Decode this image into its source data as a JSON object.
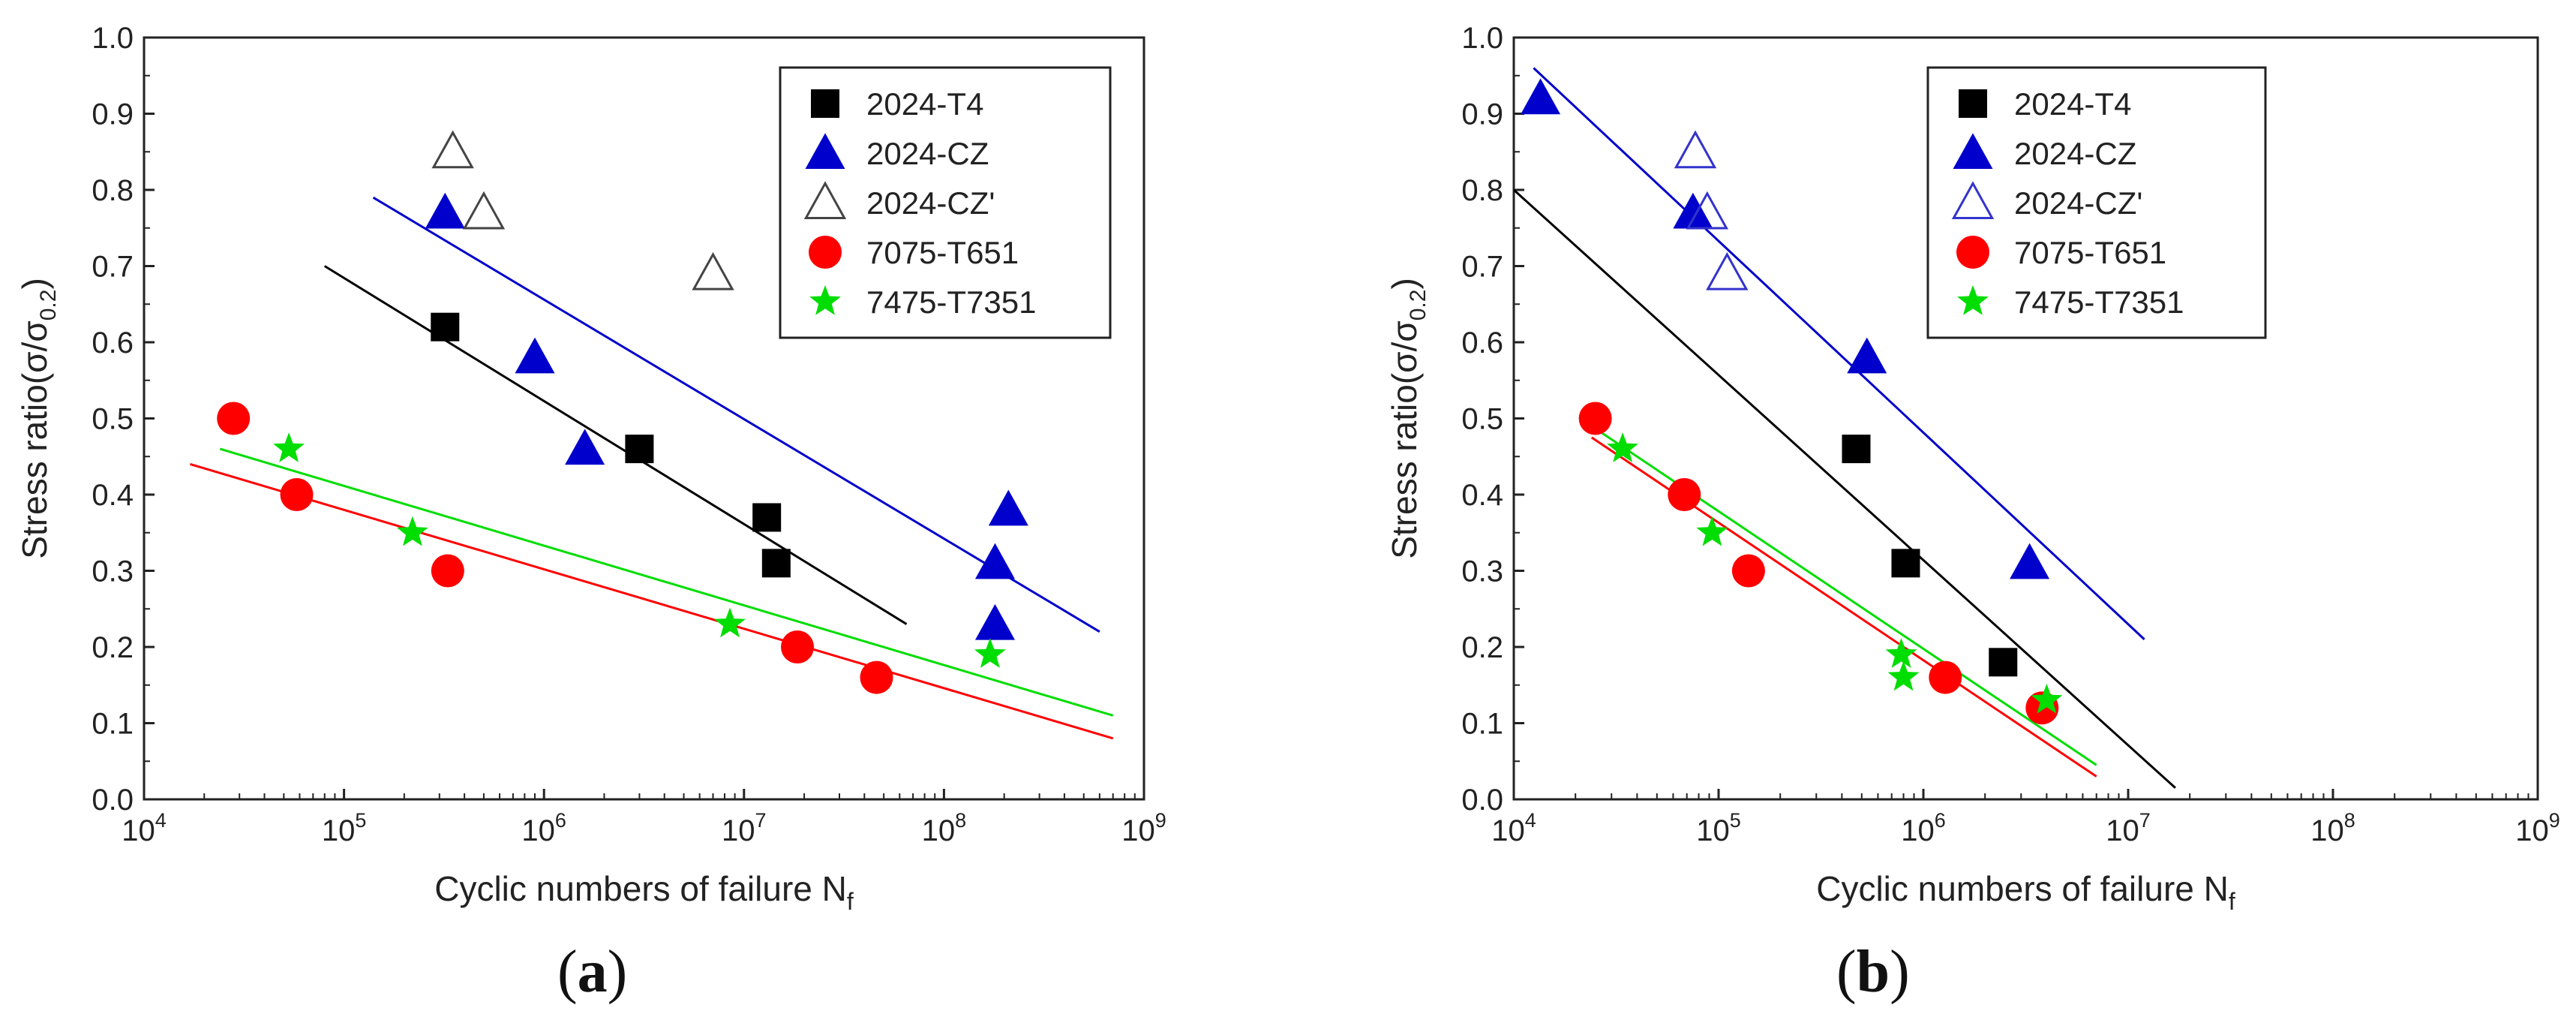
{
  "figure": {
    "panel_labels": [
      {
        "open": "(",
        "letter": "a",
        "close": ")"
      },
      {
        "open": "(",
        "letter": "b",
        "close": ")"
      }
    ]
  },
  "chart_data": [
    {
      "type": "scatter",
      "panel": "a",
      "xlabel": "Cyclic numbers of failure N",
      "xlabel_sub": "f",
      "ylabel": "Stress ratio(σ/σ",
      "ylabel_sub": "0.2",
      "ylabel_end": ")",
      "xscale": "log",
      "xlim": [
        10000,
        1000000000
      ],
      "ylim": [
        0.0,
        1.0
      ],
      "x_ticks": [
        {
          "base": "10",
          "exp": "4"
        },
        {
          "base": "10",
          "exp": "5"
        },
        {
          "base": "10",
          "exp": "6"
        },
        {
          "base": "10",
          "exp": "7"
        },
        {
          "base": "10",
          "exp": "8"
        },
        {
          "base": "10",
          "exp": "9"
        }
      ],
      "y_ticks": [
        "0.0",
        "0.1",
        "0.2",
        "0.3",
        "0.4",
        "0.5",
        "0.6",
        "0.7",
        "0.8",
        "0.9",
        "1.0"
      ],
      "legend_position": "top-right",
      "series": [
        {
          "name": "2024-T4",
          "color": "#000000",
          "marker": "square",
          "points": [
            [
              320000,
              0.62
            ],
            [
              3000000,
              0.46
            ],
            [
              13000000,
              0.37
            ],
            [
              14500000,
              0.31
            ]
          ],
          "fit": {
            "x": [
              80000,
              65000000
            ],
            "y": [
              0.7,
              0.23
            ]
          }
        },
        {
          "name": "2024-CZ",
          "color": "#0000cc",
          "marker": "triangle",
          "points": [
            [
              320000,
              0.77
            ],
            [
              900000,
              0.58
            ],
            [
              1600000,
              0.46
            ],
            [
              180000000,
              0.31
            ],
            [
              210000000,
              0.38
            ],
            [
              180000000,
              0.23
            ]
          ],
          "fit": {
            "x": [
              140000,
              600000000
            ],
            "y": [
              0.79,
              0.22
            ]
          }
        },
        {
          "name": "2024-CZ'",
          "color": "#444444",
          "marker": "triangle-open",
          "points": [
            [
              350000,
              0.85
            ],
            [
              500000,
              0.77
            ],
            [
              7000000,
              0.69
            ]
          ],
          "fit": null
        },
        {
          "name": "7075-T651",
          "color": "#ff0000",
          "marker": "circle",
          "points": [
            [
              28000,
              0.5
            ],
            [
              58000,
              0.4
            ],
            [
              330000,
              0.3
            ],
            [
              18500000,
              0.2
            ],
            [
              46000000,
              0.16
            ]
          ],
          "fit": {
            "x": [
              17000,
              700000000
            ],
            "y": [
              0.44,
              0.08
            ]
          }
        },
        {
          "name": "7475-T7351",
          "color": "#00dd00",
          "marker": "star",
          "points": [
            [
              53000,
              0.46
            ],
            [
              220000,
              0.35
            ],
            [
              8500000,
              0.23
            ],
            [
              170000000,
              0.19
            ]
          ],
          "fit": {
            "x": [
              24000,
              700000000
            ],
            "y": [
              0.46,
              0.11
            ]
          }
        }
      ]
    },
    {
      "type": "scatter",
      "panel": "b",
      "xlabel": "Cyclic numbers of failure N",
      "xlabel_sub": "f",
      "ylabel": "Stress ratio(σ/σ",
      "ylabel_sub": "0.2",
      "ylabel_end": ")",
      "xscale": "log",
      "xlim": [
        10000,
        1000000000
      ],
      "ylim": [
        0.0,
        1.0
      ],
      "x_ticks": [
        {
          "base": "10",
          "exp": "4"
        },
        {
          "base": "10",
          "exp": "5"
        },
        {
          "base": "10",
          "exp": "6"
        },
        {
          "base": "10",
          "exp": "7"
        },
        {
          "base": "10",
          "exp": "8"
        },
        {
          "base": "10",
          "exp": "9"
        }
      ],
      "y_ticks": [
        "0.0",
        "0.1",
        "0.2",
        "0.3",
        "0.4",
        "0.5",
        "0.6",
        "0.7",
        "0.8",
        "0.9",
        "1.0"
      ],
      "legend_position": "top-right",
      "series": [
        {
          "name": "2024-T4",
          "color": "#000000",
          "marker": "square",
          "points": [
            [
              470000,
              0.46
            ],
            [
              820000,
              0.31
            ],
            [
              2450000,
              0.18
            ]
          ],
          "fit": {
            "x": [
              10000,
              17000000
            ],
            "y": [
              0.8,
              0.015
            ]
          }
        },
        {
          "name": "2024-CZ",
          "color": "#0000cc",
          "marker": "triangle",
          "points": [
            [
              13500,
              0.92
            ],
            [
              75000,
              0.77
            ],
            [
              530000,
              0.58
            ],
            [
              3300000,
              0.31
            ]
          ],
          "fit": {
            "x": [
              12500,
              12000000
            ],
            "y": [
              0.96,
              0.21
            ]
          }
        },
        {
          "name": "2024-CZ'",
          "color": "#3333cc",
          "marker": "triangle-open",
          "points": [
            [
              77000,
              0.85
            ],
            [
              88000,
              0.77
            ],
            [
              110000,
              0.69
            ]
          ],
          "fit": null
        },
        {
          "name": "7075-T651",
          "color": "#ff0000",
          "marker": "circle",
          "points": [
            [
              25000,
              0.5
            ],
            [
              68000,
              0.4
            ],
            [
              140000,
              0.3
            ],
            [
              1280000,
              0.16
            ],
            [
              3800000,
              0.12
            ]
          ],
          "fit": {
            "x": [
              24000,
              7000000
            ],
            "y": [
              0.475,
              0.03
            ]
          }
        },
        {
          "name": "7475-T7351",
          "color": "#00dd00",
          "marker": "star",
          "points": [
            [
              34000,
              0.46
            ],
            [
              93000,
              0.35
            ],
            [
              780000,
              0.19
            ],
            [
              800000,
              0.16
            ],
            [
              4000000,
              0.13
            ]
          ],
          "fit": {
            "x": [
              24000,
              7000000
            ],
            "y": [
              0.49,
              0.045
            ]
          }
        }
      ]
    }
  ]
}
